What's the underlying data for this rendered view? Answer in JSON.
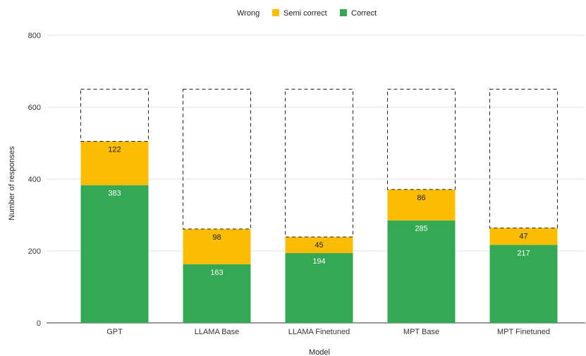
{
  "chart_data": {
    "type": "bar",
    "stacked": true,
    "categories": [
      "GPT",
      "LLAMA Base",
      "LLAMA Finetuned",
      "MPT Base",
      "MPT Finetuned"
    ],
    "series": [
      {
        "name": "Correct",
        "color": "#34a853",
        "label_color": "#ffffff",
        "values": [
          383,
          163,
          194,
          285,
          217
        ]
      },
      {
        "name": "Semi correct",
        "color": "#fbbc04",
        "label_color": "#222222",
        "values": [
          122,
          98,
          45,
          86,
          47
        ]
      },
      {
        "name": "Wrong",
        "color": "dashed-outline",
        "values": [
          145,
          389,
          411,
          279,
          386
        ]
      }
    ],
    "legend_order": [
      "Wrong",
      "Semi correct",
      "Correct"
    ],
    "legend_position": "top",
    "xlabel": "Model",
    "ylabel": "Number of responses",
    "ylim": [
      0,
      800
    ],
    "yticks": [
      0,
      200,
      400,
      600,
      800
    ],
    "grid": true
  }
}
